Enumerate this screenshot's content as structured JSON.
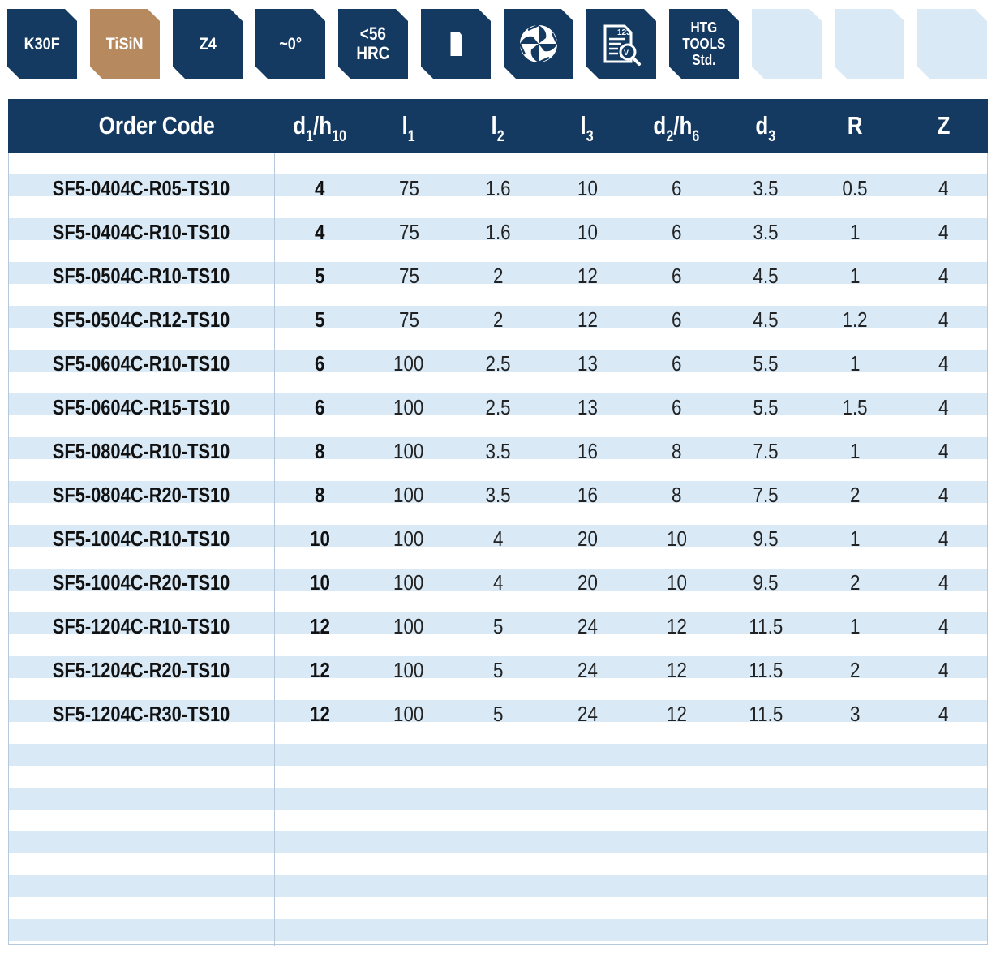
{
  "badges": [
    {
      "label": "K30F",
      "kind": "text"
    },
    {
      "label": "TiSiN",
      "kind": "coating"
    },
    {
      "label": "Z4",
      "kind": "text"
    },
    {
      "label": "~0°",
      "kind": "text"
    },
    {
      "line1": "<56",
      "line2": "HRC",
      "kind": "text2"
    },
    {
      "icon": "shank-icon",
      "kind": "icon"
    },
    {
      "icon": "flute-cross-section-icon",
      "kind": "icon"
    },
    {
      "icon": "cutting-data-document-icon",
      "icon_text": "123",
      "kind": "icon"
    },
    {
      "line1": "HTG",
      "line2": "TOOLS",
      "line3": "Std.",
      "kind": "text3"
    },
    {
      "kind": "empty"
    },
    {
      "kind": "empty"
    },
    {
      "kind": "empty"
    }
  ],
  "table": {
    "headers": {
      "order_code": "Order Code",
      "d1": {
        "base": "d",
        "sub": "1",
        "sep": "/",
        "base2": "h",
        "sub2": "10"
      },
      "l1": {
        "base": "l",
        "sub": "1"
      },
      "l2": {
        "base": "l",
        "sub": "2"
      },
      "l3": {
        "base": "l",
        "sub": "3"
      },
      "d2": {
        "base": "d",
        "sub": "2",
        "sep": "/",
        "base2": "h",
        "sub2": "6"
      },
      "d3": {
        "base": "d",
        "sub": "3"
      },
      "r": "R",
      "z": "Z"
    },
    "rows": [
      {
        "code": "SF5-0404C-R05-TS10",
        "d1": "4",
        "l1": "75",
        "l2": "1.6",
        "l3": "10",
        "d2": "6",
        "d3": "3.5",
        "r": "0.5",
        "z": "4"
      },
      {
        "code": "SF5-0404C-R10-TS10",
        "d1": "4",
        "l1": "75",
        "l2": "1.6",
        "l3": "10",
        "d2": "6",
        "d3": "3.5",
        "r": "1",
        "z": "4"
      },
      {
        "code": "SF5-0504C-R10-TS10",
        "d1": "5",
        "l1": "75",
        "l2": "2",
        "l3": "12",
        "d2": "6",
        "d3": "4.5",
        "r": "1",
        "z": "4"
      },
      {
        "code": "SF5-0504C-R12-TS10",
        "d1": "5",
        "l1": "75",
        "l2": "2",
        "l3": "12",
        "d2": "6",
        "d3": "4.5",
        "r": "1.2",
        "z": "4"
      },
      {
        "code": "SF5-0604C-R10-TS10",
        "d1": "6",
        "l1": "100",
        "l2": "2.5",
        "l3": "13",
        "d2": "6",
        "d3": "5.5",
        "r": "1",
        "z": "4"
      },
      {
        "code": "SF5-0604C-R15-TS10",
        "d1": "6",
        "l1": "100",
        "l2": "2.5",
        "l3": "13",
        "d2": "6",
        "d3": "5.5",
        "r": "1.5",
        "z": "4"
      },
      {
        "code": "SF5-0804C-R10-TS10",
        "d1": "8",
        "l1": "100",
        "l2": "3.5",
        "l3": "16",
        "d2": "8",
        "d3": "7.5",
        "r": "1",
        "z": "4"
      },
      {
        "code": "SF5-0804C-R20-TS10",
        "d1": "8",
        "l1": "100",
        "l2": "3.5",
        "l3": "16",
        "d2": "8",
        "d3": "7.5",
        "r": "2",
        "z": "4"
      },
      {
        "code": "SF5-1004C-R10-TS10",
        "d1": "10",
        "l1": "100",
        "l2": "4",
        "l3": "20",
        "d2": "10",
        "d3": "9.5",
        "r": "1",
        "z": "4"
      },
      {
        "code": "SF5-1004C-R20-TS10",
        "d1": "10",
        "l1": "100",
        "l2": "4",
        "l3": "20",
        "d2": "10",
        "d3": "9.5",
        "r": "2",
        "z": "4"
      },
      {
        "code": "SF5-1204C-R10-TS10",
        "d1": "12",
        "l1": "100",
        "l2": "5",
        "l3": "24",
        "d2": "12",
        "d3": "11.5",
        "r": "1",
        "z": "4"
      },
      {
        "code": "SF5-1204C-R20-TS10",
        "d1": "12",
        "l1": "100",
        "l2": "5",
        "l3": "24",
        "d2": "12",
        "d3": "11.5",
        "r": "2",
        "z": "4"
      },
      {
        "code": "SF5-1204C-R30-TS10",
        "d1": "12",
        "l1": "100",
        "l2": "5",
        "l3": "24",
        "d2": "12",
        "d3": "11.5",
        "r": "3",
        "z": "4"
      }
    ]
  },
  "colors": {
    "header_navy": "#143a62",
    "coating_bronze": "#b7895f",
    "stripe_light_blue": "#d9e9f6",
    "divider": "#b6c9dc"
  }
}
